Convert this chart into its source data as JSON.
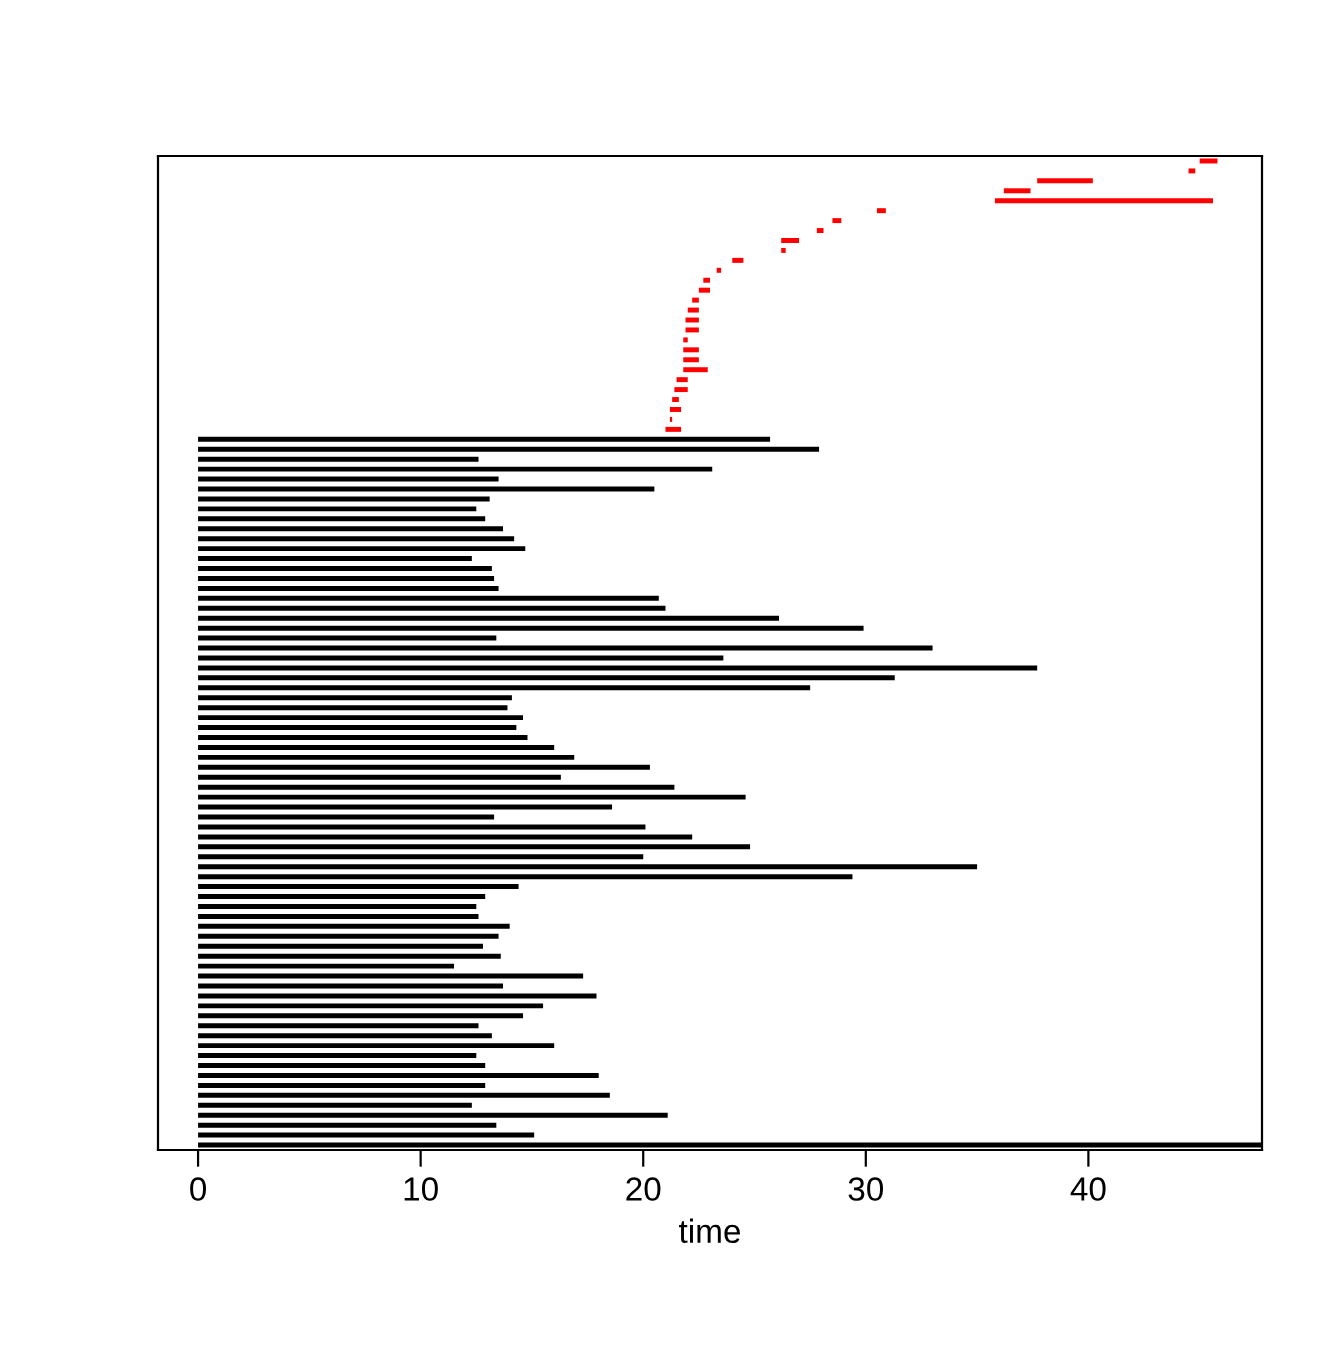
{
  "chart_data": {
    "type": "bar",
    "orientation": "horizontal",
    "xlabel": "time",
    "tick_labels": "x",
    "xlim": [
      -1.8,
      47.8
    ],
    "xticks": [
      0,
      10,
      20,
      30,
      40
    ],
    "grid": false,
    "legend": false,
    "categories": [
      null,
      null,
      null,
      null,
      null,
      null,
      null,
      null,
      null,
      null,
      null,
      null,
      null,
      null,
      null,
      null,
      null,
      null,
      null,
      null,
      null,
      null,
      null,
      null,
      null,
      null,
      null,
      null,
      null,
      null,
      null,
      null,
      null,
      null,
      null,
      null,
      null,
      null,
      null,
      null,
      null,
      null,
      null,
      null,
      null,
      null,
      null,
      null,
      null,
      null,
      null,
      null,
      null,
      null,
      null,
      null,
      null,
      null,
      null,
      null,
      null,
      null,
      null,
      null,
      null,
      null,
      null,
      null,
      null,
      null,
      null,
      null,
      null,
      null,
      null,
      null,
      null,
      null,
      null,
      null,
      null,
      null,
      null,
      null,
      null,
      null,
      null,
      null,
      null,
      null,
      null,
      null,
      null,
      null,
      null,
      null,
      null,
      null,
      null,
      null
    ],
    "base": [
      45.0,
      44.5,
      37.7,
      36.2,
      35.8,
      30.5,
      28.5,
      27.8,
      26.2,
      26.2,
      24.0,
      23.3,
      22.7,
      22.5,
      22.2,
      22.0,
      21.9,
      21.9,
      21.8,
      21.8,
      21.8,
      21.8,
      21.5,
      21.4,
      21.3,
      21.2,
      21.2,
      21.0,
      0,
      0,
      0,
      0,
      0,
      0,
      0,
      0,
      0,
      0,
      0,
      0,
      0,
      0,
      0,
      0,
      0,
      0,
      0,
      0,
      0,
      0,
      0,
      0,
      0,
      0,
      0,
      0,
      0,
      0,
      0,
      0,
      0,
      0,
      0,
      0,
      0,
      0,
      0,
      0,
      0,
      0,
      0,
      0,
      0,
      0,
      0,
      0,
      0,
      0,
      0,
      0,
      0,
      0,
      0,
      0,
      0,
      0,
      0,
      0,
      0,
      0,
      0,
      0,
      0,
      0,
      0,
      0,
      0,
      0,
      0,
      0
    ],
    "values": [
      0.8,
      0.3,
      2.5,
      1.2,
      9.8,
      0.4,
      0.4,
      0.3,
      0.8,
      0.2,
      0.5,
      0.2,
      0.3,
      0.5,
      0.3,
      0.5,
      0.6,
      0.6,
      0.2,
      0.7,
      0.7,
      1.1,
      0.5,
      0.6,
      0.3,
      0.5,
      0.1,
      0.7,
      25.7,
      27.9,
      12.6,
      23.1,
      13.5,
      20.5,
      13.1,
      12.5,
      12.9,
      13.7,
      14.2,
      14.7,
      12.3,
      13.2,
      13.3,
      13.5,
      20.7,
      21.0,
      26.1,
      29.9,
      13.4,
      33.0,
      23.6,
      37.7,
      31.3,
      27.5,
      14.1,
      13.9,
      14.6,
      14.3,
      14.8,
      16.0,
      16.9,
      20.3,
      16.3,
      21.4,
      24.6,
      18.6,
      13.3,
      20.1,
      22.2,
      24.8,
      20.0,
      35.0,
      29.4,
      14.4,
      12.9,
      12.5,
      12.6,
      14.0,
      13.5,
      12.8,
      13.6,
      11.5,
      17.3,
      13.7,
      17.9,
      15.5,
      14.6,
      12.6,
      13.2,
      16.0,
      12.5,
      12.9,
      18.0,
      12.9,
      18.5,
      12.3,
      21.1,
      13.4,
      15.1,
      47.8
    ],
    "colors": [
      "#ff0000",
      "#ff0000",
      "#ff0000",
      "#ff0000",
      "#ff0000",
      "#ff0000",
      "#ff0000",
      "#ff0000",
      "#ff0000",
      "#ff0000",
      "#ff0000",
      "#ff0000",
      "#ff0000",
      "#ff0000",
      "#ff0000",
      "#ff0000",
      "#ff0000",
      "#ff0000",
      "#ff0000",
      "#ff0000",
      "#ff0000",
      "#ff0000",
      "#ff0000",
      "#ff0000",
      "#ff0000",
      "#ff0000",
      "#ff0000",
      "#ff0000",
      "#000000",
      "#000000",
      "#000000",
      "#000000",
      "#000000",
      "#000000",
      "#000000",
      "#000000",
      "#000000",
      "#000000",
      "#000000",
      "#000000",
      "#000000",
      "#000000",
      "#000000",
      "#000000",
      "#000000",
      "#000000",
      "#000000",
      "#000000",
      "#000000",
      "#000000",
      "#000000",
      "#000000",
      "#000000",
      "#000000",
      "#000000",
      "#000000",
      "#000000",
      "#000000",
      "#000000",
      "#000000",
      "#000000",
      "#000000",
      "#000000",
      "#000000",
      "#000000",
      "#000000",
      "#000000",
      "#000000",
      "#000000",
      "#000000",
      "#000000",
      "#000000",
      "#000000",
      "#000000",
      "#000000",
      "#000000",
      "#000000",
      "#000000",
      "#000000",
      "#000000",
      "#000000",
      "#000000",
      "#000000",
      "#000000",
      "#000000",
      "#000000",
      "#000000",
      "#000000",
      "#000000",
      "#000000",
      "#000000",
      "#000000",
      "#000000",
      "#000000",
      "#000000",
      "#000000",
      "#000000",
      "#000000",
      "#000000",
      "#000000"
    ]
  }
}
